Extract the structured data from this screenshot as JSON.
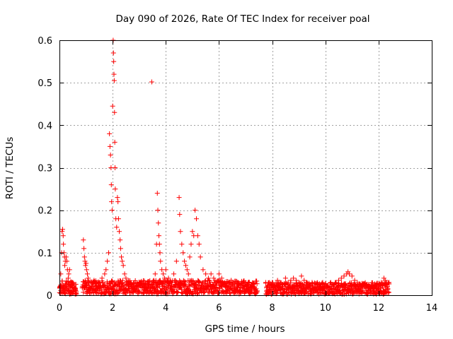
{
  "chart_data": {
    "type": "scatter",
    "title": "Day 090 of 2026, Rate Of TEC Index for receiver poal",
    "xlabel": "GPS time / hours",
    "ylabel": "ROTI / TECUs",
    "xlim": [
      0,
      14
    ],
    "ylim": [
      0,
      0.6
    ],
    "xticks": [
      0,
      2,
      4,
      6,
      8,
      10,
      12,
      14
    ],
    "yticks": [
      0,
      0.1,
      0.2,
      0.3,
      0.4,
      0.5,
      0.6
    ],
    "xtick_labels": [
      "0",
      "2",
      "4",
      "6",
      "8",
      "10",
      "12",
      "14"
    ],
    "ytick_labels": [
      "0",
      "0.1",
      "0.2",
      "0.3",
      "0.4",
      "0.5",
      "0.6"
    ],
    "grid": true,
    "marker": "+",
    "color": "#ff0000",
    "series": [
      {
        "name": "ROTI",
        "points": [
          [
            0.02,
            0.02
          ],
          [
            0.05,
            0.05
          ],
          [
            0.08,
            0.1
          ],
          [
            0.1,
            0.15
          ],
          [
            0.12,
            0.155
          ],
          [
            0.14,
            0.14
          ],
          [
            0.15,
            0.12
          ],
          [
            0.17,
            0.1
          ],
          [
            0.19,
            0.09
          ],
          [
            0.2,
            0.07
          ],
          [
            0.22,
            0.08
          ],
          [
            0.25,
            0.09
          ],
          [
            0.28,
            0.08
          ],
          [
            0.3,
            0.06
          ],
          [
            0.33,
            0.04
          ],
          [
            0.35,
            0.05
          ],
          [
            0.38,
            0.06
          ],
          [
            0.4,
            0.03
          ],
          [
            0.42,
            0.02
          ],
          [
            0.45,
            0.03
          ],
          [
            0.48,
            0.02
          ],
          [
            0.5,
            0.03
          ],
          [
            0.55,
            0.02
          ],
          [
            0.6,
            0.015
          ],
          [
            0.9,
            0.13
          ],
          [
            0.92,
            0.11
          ],
          [
            0.94,
            0.09
          ],
          [
            0.96,
            0.08
          ],
          [
            0.98,
            0.07
          ],
          [
            1.0,
            0.075
          ],
          [
            1.02,
            0.06
          ],
          [
            1.05,
            0.05
          ],
          [
            1.08,
            0.04
          ],
          [
            1.12,
            0.03
          ],
          [
            1.2,
            0.02
          ],
          [
            1.3,
            0.035
          ],
          [
            1.4,
            0.02
          ],
          [
            1.5,
            0.03
          ],
          [
            1.6,
            0.04
          ],
          [
            1.7,
            0.05
          ],
          [
            1.75,
            0.06
          ],
          [
            1.8,
            0.08
          ],
          [
            1.85,
            0.1
          ],
          [
            1.88,
            0.38
          ],
          [
            1.9,
            0.35
          ],
          [
            1.92,
            0.33
          ],
          [
            1.94,
            0.3
          ],
          [
            1.95,
            0.26
          ],
          [
            1.96,
            0.22
          ],
          [
            1.98,
            0.2
          ],
          [
            2.0,
            0.445
          ],
          [
            2.02,
            0.6
          ],
          [
            2.03,
            0.57
          ],
          [
            2.04,
            0.55
          ],
          [
            2.05,
            0.52
          ],
          [
            2.06,
            0.505
          ],
          [
            2.07,
            0.43
          ],
          [
            2.08,
            0.36
          ],
          [
            2.09,
            0.3
          ],
          [
            2.1,
            0.25
          ],
          [
            2.12,
            0.18
          ],
          [
            2.15,
            0.16
          ],
          [
            2.18,
            0.23
          ],
          [
            2.2,
            0.22
          ],
          [
            2.22,
            0.18
          ],
          [
            2.25,
            0.15
          ],
          [
            2.28,
            0.13
          ],
          [
            2.3,
            0.11
          ],
          [
            2.33,
            0.09
          ],
          [
            2.36,
            0.08
          ],
          [
            2.4,
            0.07
          ],
          [
            2.45,
            0.05
          ],
          [
            2.5,
            0.04
          ],
          [
            2.6,
            0.03
          ],
          [
            2.7,
            0.02
          ],
          [
            2.8,
            0.03
          ],
          [
            2.9,
            0.02
          ],
          [
            3.0,
            0.03
          ],
          [
            3.1,
            0.025
          ],
          [
            3.2,
            0.02
          ],
          [
            3.3,
            0.03
          ],
          [
            3.4,
            0.025
          ],
          [
            3.47,
            0.502
          ],
          [
            3.5,
            0.02
          ],
          [
            3.55,
            0.035
          ],
          [
            3.6,
            0.05
          ],
          [
            3.65,
            0.12
          ],
          [
            3.68,
            0.24
          ],
          [
            3.7,
            0.2
          ],
          [
            3.72,
            0.17
          ],
          [
            3.74,
            0.14
          ],
          [
            3.76,
            0.12
          ],
          [
            3.78,
            0.1
          ],
          [
            3.8,
            0.08
          ],
          [
            3.85,
            0.06
          ],
          [
            3.9,
            0.05
          ],
          [
            3.95,
            0.04
          ],
          [
            4.0,
            0.06
          ],
          [
            4.1,
            0.04
          ],
          [
            4.2,
            0.03
          ],
          [
            4.3,
            0.05
          ],
          [
            4.4,
            0.08
          ],
          [
            4.5,
            0.23
          ],
          [
            4.52,
            0.19
          ],
          [
            4.55,
            0.15
          ],
          [
            4.6,
            0.12
          ],
          [
            4.65,
            0.1
          ],
          [
            4.7,
            0.08
          ],
          [
            4.75,
            0.07
          ],
          [
            4.8,
            0.06
          ],
          [
            4.85,
            0.05
          ],
          [
            4.9,
            0.09
          ],
          [
            4.95,
            0.12
          ],
          [
            5.0,
            0.15
          ],
          [
            5.05,
            0.14
          ],
          [
            5.1,
            0.2
          ],
          [
            5.15,
            0.18
          ],
          [
            5.2,
            0.14
          ],
          [
            5.25,
            0.12
          ],
          [
            5.3,
            0.09
          ],
          [
            5.4,
            0.06
          ],
          [
            5.5,
            0.05
          ],
          [
            5.6,
            0.04
          ],
          [
            5.7,
            0.05
          ],
          [
            5.8,
            0.04
          ],
          [
            5.9,
            0.03
          ],
          [
            6.0,
            0.05
          ],
          [
            6.1,
            0.04
          ],
          [
            6.2,
            0.03
          ],
          [
            6.3,
            0.02
          ],
          [
            6.4,
            0.03
          ],
          [
            6.5,
            0.025
          ],
          [
            6.6,
            0.02
          ],
          [
            6.7,
            0.03
          ],
          [
            6.8,
            0.025
          ],
          [
            6.9,
            0.02
          ],
          [
            7.0,
            0.03
          ],
          [
            7.1,
            0.02
          ],
          [
            7.2,
            0.025
          ],
          [
            7.3,
            0.02
          ],
          [
            7.4,
            0.015
          ],
          [
            7.8,
            0.02
          ],
          [
            7.9,
            0.025
          ],
          [
            8.0,
            0.03
          ],
          [
            8.1,
            0.02
          ],
          [
            8.2,
            0.035
          ],
          [
            8.3,
            0.03
          ],
          [
            8.4,
            0.025
          ],
          [
            8.5,
            0.04
          ],
          [
            8.6,
            0.03
          ],
          [
            8.7,
            0.035
          ],
          [
            8.8,
            0.04
          ],
          [
            8.9,
            0.035
          ],
          [
            9.0,
            0.03
          ],
          [
            9.1,
            0.045
          ],
          [
            9.2,
            0.035
          ],
          [
            9.3,
            0.03
          ],
          [
            9.4,
            0.025
          ],
          [
            9.5,
            0.03
          ],
          [
            9.6,
            0.02
          ],
          [
            9.7,
            0.025
          ],
          [
            9.8,
            0.02
          ],
          [
            9.9,
            0.03
          ],
          [
            10.0,
            0.025
          ],
          [
            10.1,
            0.02
          ],
          [
            10.2,
            0.03
          ],
          [
            10.3,
            0.025
          ],
          [
            10.4,
            0.03
          ],
          [
            10.5,
            0.035
          ],
          [
            10.6,
            0.04
          ],
          [
            10.7,
            0.045
          ],
          [
            10.8,
            0.05
          ],
          [
            10.85,
            0.055
          ],
          [
            10.9,
            0.05
          ],
          [
            11.0,
            0.045
          ],
          [
            11.1,
            0.035
          ],
          [
            11.2,
            0.03
          ],
          [
            11.3,
            0.025
          ],
          [
            11.4,
            0.02
          ],
          [
            11.5,
            0.025
          ],
          [
            11.6,
            0.02
          ],
          [
            11.7,
            0.015
          ],
          [
            11.8,
            0.02
          ],
          [
            11.9,
            0.025
          ],
          [
            12.0,
            0.02
          ],
          [
            12.1,
            0.03
          ],
          [
            12.2,
            0.04
          ],
          [
            12.25,
            0.035
          ],
          [
            12.3,
            0.025
          ],
          [
            12.35,
            0.015
          ]
        ]
      }
    ],
    "baseline_band": [
      {
        "x_start": 0.0,
        "x_end": 0.65,
        "y_min": 0.002,
        "y_max": 0.035
      },
      {
        "x_start": 0.85,
        "x_end": 7.45,
        "y_min": 0.003,
        "y_max": 0.035
      },
      {
        "x_start": 7.75,
        "x_end": 12.4,
        "y_min": 0.002,
        "y_max": 0.03
      }
    ]
  }
}
